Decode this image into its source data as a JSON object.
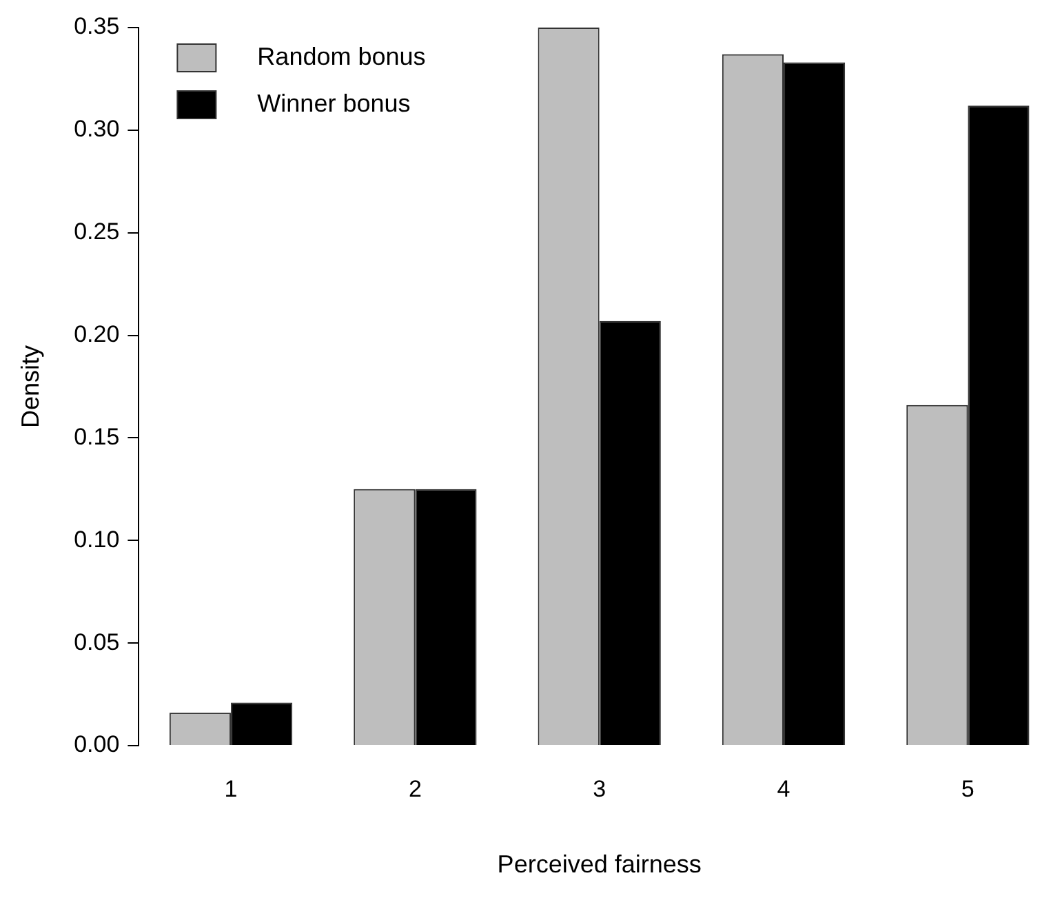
{
  "chart_data": {
    "type": "bar",
    "xlabel": "Perceived fairness",
    "ylabel": "Density",
    "categories": [
      "1",
      "2",
      "3",
      "4",
      "5"
    ],
    "series": [
      {
        "name": "Random bonus",
        "color": "#bebebe",
        "values": [
          0.016,
          0.125,
          0.35,
          0.337,
          0.166
        ]
      },
      {
        "name": "Winner bonus",
        "color": "#000000",
        "values": [
          0.021,
          0.125,
          0.207,
          0.333,
          0.312
        ]
      }
    ],
    "ylim": [
      0,
      0.35
    ],
    "yticks": [
      {
        "value": 0,
        "label": "0.00"
      },
      {
        "value": 0.05,
        "label": "0.05"
      },
      {
        "value": 0.1,
        "label": "0.10"
      },
      {
        "value": 0.15,
        "label": "0.15"
      },
      {
        "value": 0.2,
        "label": "0.20"
      },
      {
        "value": 0.25,
        "label": "0.25"
      },
      {
        "value": 0.3,
        "label": "0.30"
      },
      {
        "value": 0.35,
        "label": "0.35"
      }
    ],
    "grid": false,
    "legend": "top left"
  }
}
